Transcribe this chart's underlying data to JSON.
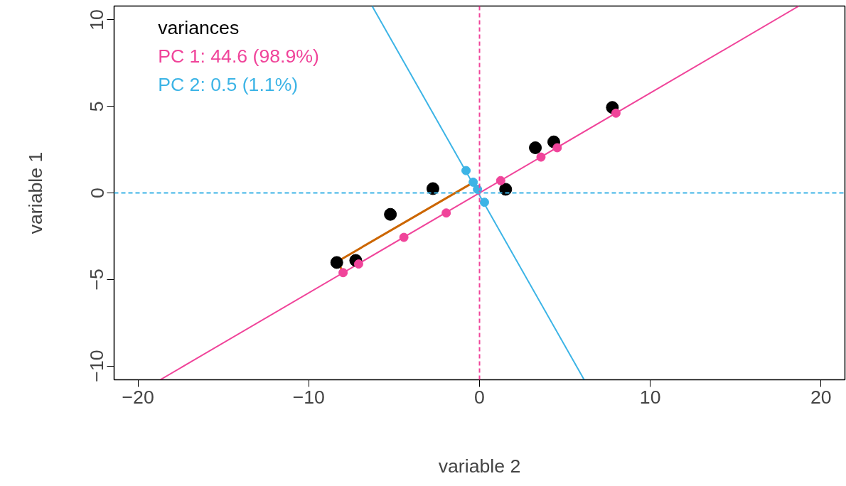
{
  "chart_data": {
    "type": "scatter",
    "xlabel": "variable 2",
    "ylabel": "variable 1",
    "legend_title": "variances",
    "legend": "top left",
    "grid": false,
    "marker": "circle",
    "xlim": [
      -21.4,
      21.4
    ],
    "ylim": [
      -10.8,
      10.8
    ],
    "xticks": [
      -20,
      -10,
      0,
      10,
      20
    ],
    "yticks": [
      -10,
      -5,
      0,
      5,
      10
    ],
    "ref_lines": [
      {
        "axis": "x",
        "value": 0,
        "color": "#f0449a",
        "line_style": "dashed"
      },
      {
        "axis": "y",
        "value": 0,
        "color": "#3cb4e6",
        "line_style": "dashed"
      }
    ],
    "series": [
      {
        "type": "line",
        "marker": "none",
        "name": "PC 1: 44.6 (98.9%)",
        "color": "#f0449a",
        "x": [
          -18.7,
          18.7
        ],
        "values": [
          -10.8,
          10.8
        ]
      },
      {
        "type": "line",
        "marker": "none",
        "name": "PC 2: 0.5 (1.1%)",
        "color": "#3cb4e6",
        "x": [
          -6.29,
          6.13
        ],
        "values": [
          10.8,
          -10.8
        ]
      },
      {
        "type": "line",
        "marker": "none",
        "color": "#cc6600",
        "x": [
          -8.03,
          -8.28,
          -0.41
        ],
        "values": [
          -4.56,
          -3.94,
          0.58
        ]
      },
      {
        "color": "#000000",
        "x": [
          -8.36,
          -7.25,
          -5.22,
          -2.73,
          1.53,
          3.27,
          4.35,
          7.78
        ],
        "values": [
          -4.02,
          -3.9,
          -1.24,
          0.25,
          0.21,
          2.61,
          2.95,
          4.94
        ]
      },
      {
        "color": "#f0449a",
        "x": [
          -7.99,
          -7.08,
          -4.43,
          -1.95,
          1.24,
          3.6,
          4.55,
          7.99
        ],
        "values": [
          -4.61,
          -4.11,
          -2.57,
          -1.16,
          0.71,
          2.07,
          2.61,
          4.61
        ]
      },
      {
        "color": "#3cb4e6",
        "x": [
          -0.79,
          -0.37,
          -0.21,
          -0.12,
          0.29
        ],
        "values": [
          1.29,
          0.62,
          null,
          0.21,
          -0.54
        ]
      }
    ]
  }
}
